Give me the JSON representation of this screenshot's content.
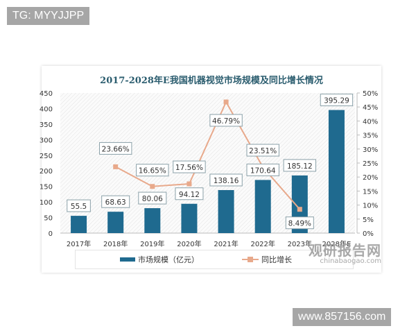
{
  "watermarks": {
    "top_left": "TG: MYYJJPP",
    "bottom_right": "www.857156.com"
  },
  "logo": {
    "cn": "观研报告网",
    "en": "chinabaogao.com"
  },
  "colors": {
    "bar": "#1f6a8f",
    "line": "#e8a98b",
    "title": "#2a5c6e"
  },
  "chart_data": {
    "type": "bar",
    "title": "2017-2028年E我国机器视觉市场规模及同比增长情况",
    "categories": [
      "2017年",
      "2018年",
      "2019年",
      "2020年",
      "2021年",
      "2022年",
      "2023年",
      "2028年E"
    ],
    "series": [
      {
        "name": "市场规模（亿元）",
        "type": "bar",
        "axis": "left",
        "values": [
          55.5,
          68.63,
          80.06,
          94.12,
          138.16,
          170.64,
          185.12,
          395.29
        ],
        "labels": [
          "55.5",
          "68.63",
          "80.06",
          "94.12",
          "138.16",
          "170.64",
          "185.12",
          "395.29"
        ]
      },
      {
        "name": "同比增长",
        "type": "line",
        "axis": "right",
        "values": [
          null,
          23.66,
          16.65,
          17.56,
          46.79,
          23.51,
          8.49,
          null
        ],
        "labels": [
          "",
          "23.66%",
          "16.65%",
          "17.56%",
          "46.79%",
          "23.51%",
          "8.49%",
          ""
        ]
      }
    ],
    "left_axis": {
      "ylim": [
        0,
        450
      ],
      "ticks": [
        "0",
        "50",
        "100",
        "150",
        "200",
        "250",
        "300",
        "350",
        "400",
        "450"
      ]
    },
    "right_axis": {
      "ylim": [
        0,
        50
      ],
      "ticks": [
        "0%",
        "5%",
        "10%",
        "15%",
        "20%",
        "25%",
        "30%",
        "35%",
        "40%",
        "45%",
        "50%"
      ]
    },
    "legend": {
      "position": "bottom",
      "items": [
        "市场规模（亿元）",
        "同比增长"
      ]
    },
    "grid": false
  }
}
